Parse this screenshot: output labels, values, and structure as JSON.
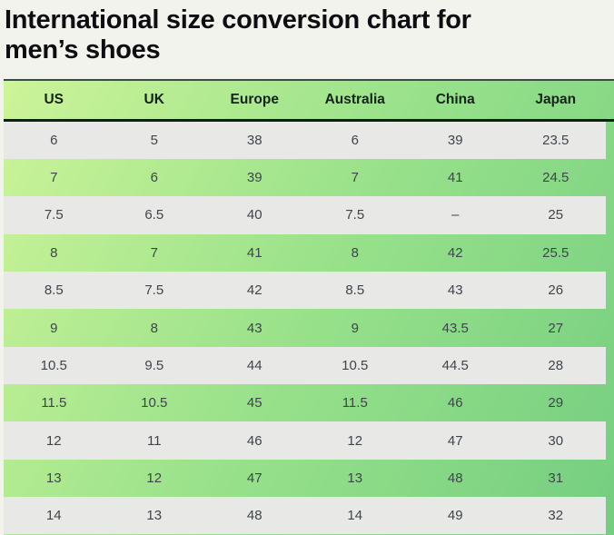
{
  "page": {
    "title": "International size conversion chart for men’s shoes",
    "title_lines": [
      "International size conversion chart for",
      "men’s shoes"
    ]
  },
  "chart_data": {
    "type": "table",
    "title": "International size conversion chart for men’s shoes",
    "columns": [
      "US",
      "UK",
      "Europe",
      "Australia",
      "China",
      "Japan"
    ],
    "rows": [
      [
        "6",
        "5",
        "38",
        "6",
        "39",
        "23.5"
      ],
      [
        "7",
        "6",
        "39",
        "7",
        "41",
        "24.5"
      ],
      [
        "7.5",
        "6.5",
        "40",
        "7.5",
        "–",
        "25"
      ],
      [
        "8",
        "7",
        "41",
        "8",
        "42",
        "25.5"
      ],
      [
        "8.5",
        "7.5",
        "42",
        "8.5",
        "43",
        "26"
      ],
      [
        "9",
        "8",
        "43",
        "9",
        "43.5",
        "27"
      ],
      [
        "10.5",
        "9.5",
        "44",
        "10.5",
        "44.5",
        "28"
      ],
      [
        "11.5",
        "10.5",
        "45",
        "11.5",
        "46",
        "29"
      ],
      [
        "12",
        "11",
        "46",
        "12",
        "47",
        "30"
      ],
      [
        "13",
        "12",
        "47",
        "13",
        "48",
        "31"
      ],
      [
        "14",
        "13",
        "48",
        "14",
        "49",
        "32"
      ]
    ],
    "layout": {
      "zebra_striping": "odd data rows gray, even data rows green gradient",
      "header_position": "top"
    },
    "colors": {
      "gradient_start": "#cdf499",
      "gradient_end": "#74ce80",
      "alt_row_gray": "#e8e8e6",
      "header_divider_dark": "#0d2113",
      "top_border": "#32503a",
      "header_text": "#15231b",
      "cell_text": "#3f454b",
      "title_text": "#0e0e12",
      "page_background": "#f1f3ec"
    }
  }
}
